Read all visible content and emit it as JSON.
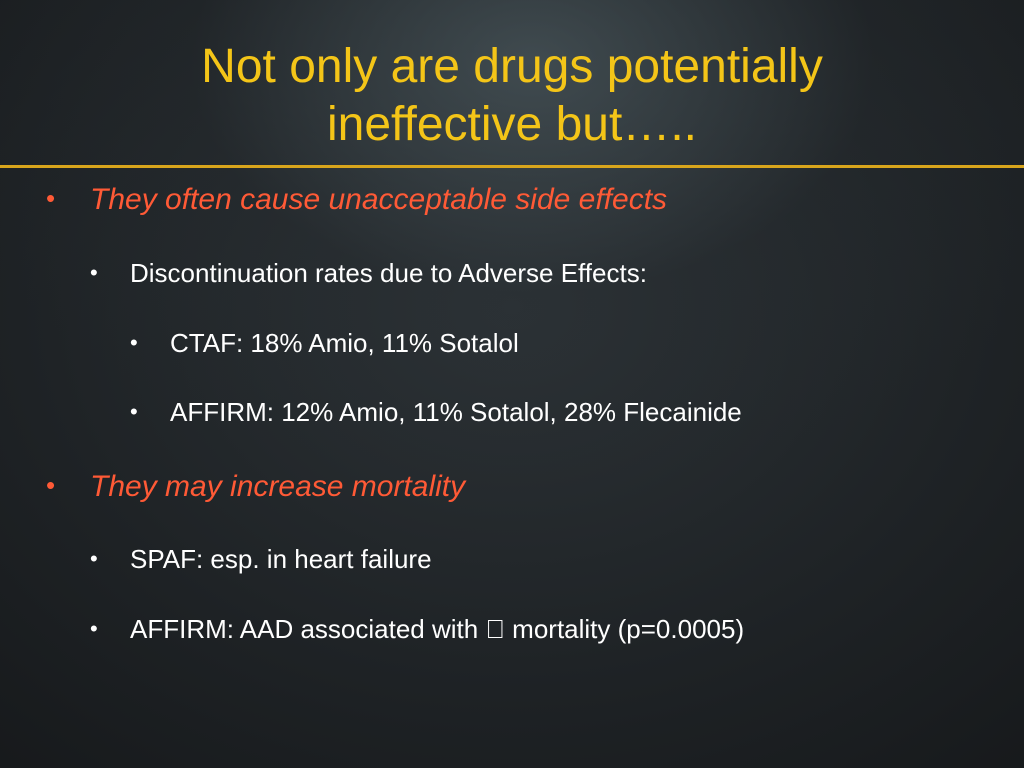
{
  "slide": {
    "title_line1": "Not only are drugs potentially",
    "title_line2": "ineffective but…..",
    "colors": {
      "title": "#f4c518",
      "rule": "#d8a51c",
      "emphasis": "#ff5a36",
      "body": "#ffffff"
    },
    "bullet_glyph": "•",
    "bullets": [
      {
        "text": "They often cause unacceptable side effects"
      },
      {
        "text": "Discontinuation rates due to Adverse Effects:"
      },
      {
        "text": "CTAF: 18% Amio, 11% Sotalol"
      },
      {
        "text": "AFFIRM: 12% Amio, 11% Sotalol, 28% Flecainide"
      },
      {
        "text": "They may increase mortality"
      },
      {
        "text": "SPAF: esp. in heart failure"
      },
      {
        "text": "AFFIRM: AAD associated with  mortality (p=0.0005)"
      }
    ]
  }
}
